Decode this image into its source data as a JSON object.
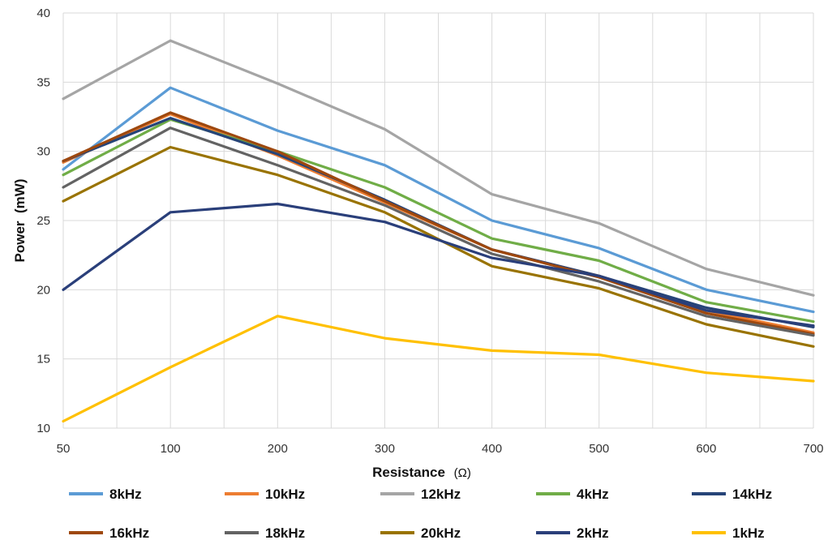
{
  "chart_data": {
    "type": "line",
    "title": "",
    "xlabel": "Resistance",
    "xlabel_unit": "(Ω)",
    "ylabel": "Power  (mW)",
    "categories": [
      "50",
      "100",
      "200",
      "300",
      "400",
      "500",
      "600",
      "700"
    ],
    "ylim": [
      10,
      40
    ],
    "yticks": [
      "10",
      "15",
      "20",
      "25",
      "30",
      "35",
      "40"
    ],
    "grid": "on",
    "legend_position": "bottom",
    "series": [
      {
        "name": "8kHz",
        "color": "#5B9BD5",
        "values": [
          28.7,
          34.6,
          31.5,
          29.0,
          25.0,
          23.0,
          20.0,
          18.4
        ]
      },
      {
        "name": "10kHz",
        "color": "#ED7D31",
        "values": [
          29.2,
          32.7,
          29.7,
          26.3,
          22.9,
          21.0,
          18.5,
          16.9
        ]
      },
      {
        "name": "12kHz",
        "color": "#A5A5A5",
        "values": [
          33.8,
          38.0,
          34.9,
          31.6,
          26.9,
          24.8,
          21.5,
          19.6
        ]
      },
      {
        "name": "4kHz",
        "color": "#70AD47",
        "values": [
          28.3,
          32.3,
          30.0,
          27.4,
          23.7,
          22.1,
          19.1,
          17.7
        ]
      },
      {
        "name": "14kHz",
        "color": "#264478",
        "values": [
          29.3,
          32.4,
          29.8,
          26.5,
          22.9,
          21.0,
          18.7,
          17.3
        ]
      },
      {
        "name": "16kHz",
        "color": "#9E480E",
        "values": [
          29.3,
          32.8,
          30.0,
          26.4,
          22.9,
          20.9,
          18.3,
          16.8
        ]
      },
      {
        "name": "18kHz",
        "color": "#636363",
        "values": [
          27.4,
          31.7,
          29.0,
          26.1,
          22.6,
          20.6,
          18.1,
          16.7
        ]
      },
      {
        "name": "20kHz",
        "color": "#997300",
        "values": [
          26.4,
          30.3,
          28.3,
          25.6,
          21.7,
          20.1,
          17.5,
          15.9
        ]
      },
      {
        "name": "2kHz",
        "color": "#2A3F7A",
        "values": [
          20.0,
          25.6,
          26.2,
          24.9,
          22.3,
          21.0,
          18.5,
          17.4
        ]
      },
      {
        "name": "1kHz",
        "color": "#FFC000",
        "values": [
          10.5,
          14.4,
          18.1,
          16.5,
          15.6,
          15.3,
          14.0,
          13.4
        ]
      }
    ]
  }
}
